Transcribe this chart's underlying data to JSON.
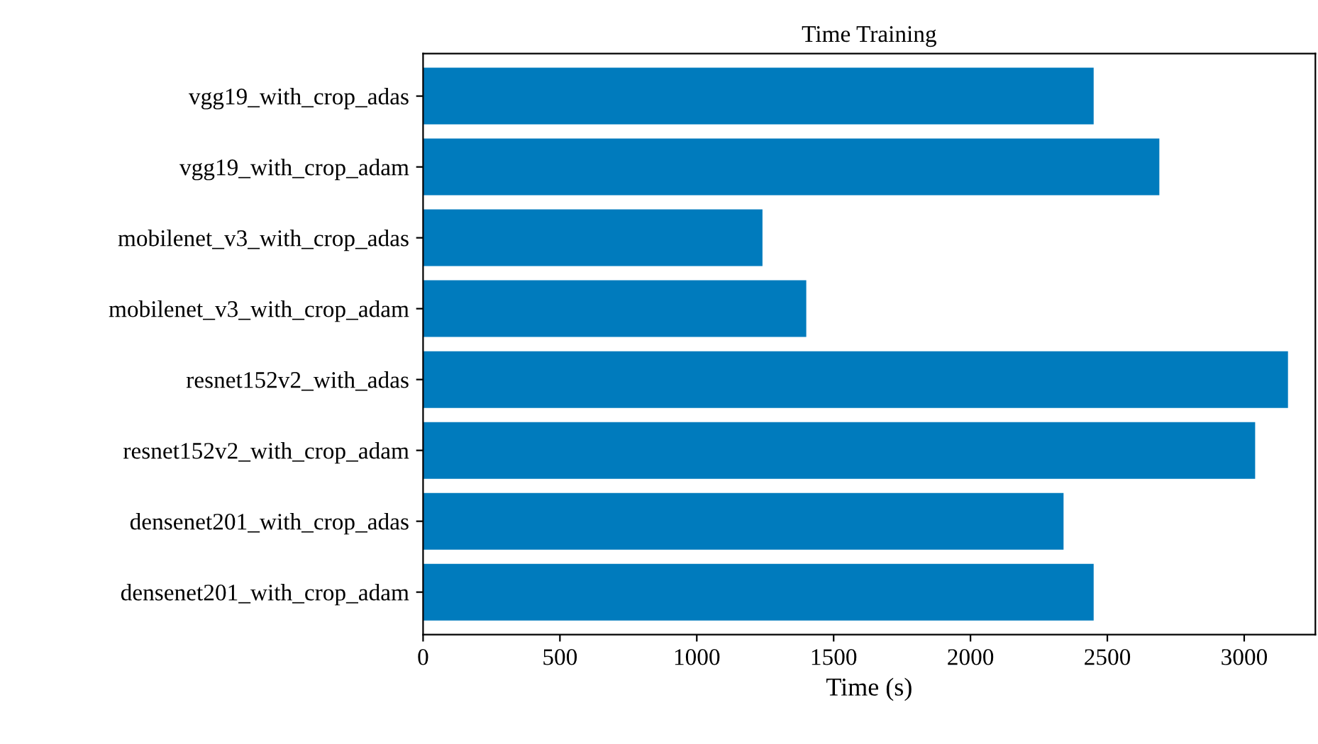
{
  "chart_data": {
    "type": "bar",
    "orientation": "horizontal",
    "title": "Time Training",
    "xlabel": "Time (s)",
    "categories": [
      "vgg19_with_crop_adas",
      "vgg19_with_crop_adam",
      "mobilenet_v3_with_crop_adas",
      "mobilenet_v3_with_crop_adam",
      "resnet152v2_with_adas",
      "resnet152v2_with_crop_adam",
      "densenet201_with_crop_adas",
      "densenet201_with_crop_adam"
    ],
    "values": [
      2450,
      2690,
      1240,
      1400,
      3160,
      3040,
      2340,
      2450
    ],
    "color": "#007bbd",
    "xlim": [
      0,
      3260
    ],
    "xticks": [
      0,
      500,
      1000,
      1500,
      2000,
      2500,
      3000
    ],
    "grid": false
  }
}
